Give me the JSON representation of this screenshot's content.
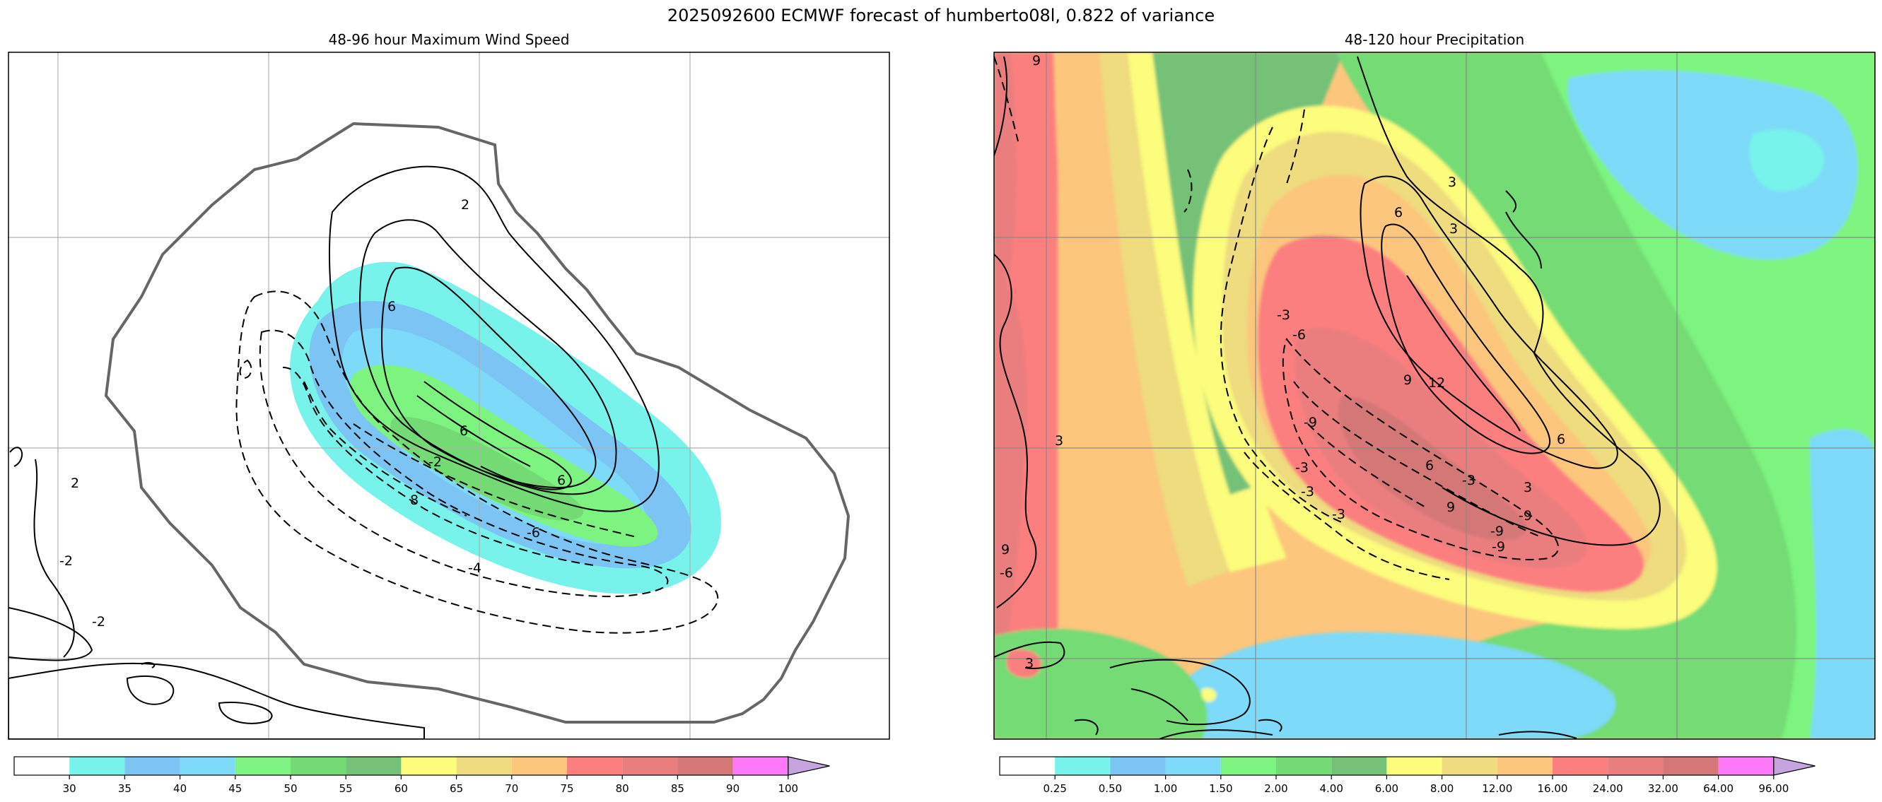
{
  "title": "2025092600 ECMWF forecast of humberto08l, 0.822 of variance",
  "chart_data": [
    {
      "type": "heatmap",
      "title": "48-96 hour Maximum Wind Speed",
      "colorbar": {
        "levels": [
          "30",
          "35",
          "40",
          "45",
          "50",
          "55",
          "60",
          "65",
          "70",
          "75",
          "80",
          "85",
          "90",
          "100"
        ],
        "colors": [
          "#78f3ec",
          "#7bc4f3",
          "#7ddaf8",
          "#7cf47f",
          "#74db74",
          "#75c178",
          "#fcfc7d",
          "#eedc7f",
          "#fcc67d",
          "#fc7f7f",
          "#ea7e7f",
          "#d47777",
          "#fd78f8",
          "#c6a5df"
        ],
        "extend": "max"
      },
      "contour_labels": [
        "2",
        "2",
        "-2",
        "6",
        "6",
        "6",
        "8",
        "-4",
        "-6",
        "-2",
        "-2"
      ]
    },
    {
      "type": "heatmap",
      "title": "48-120 hour Precipitation",
      "colorbar": {
        "levels": [
          "0.25",
          "0.50",
          "1.00",
          "1.50",
          "2.00",
          "4.00",
          "6.00",
          "8.00",
          "12.00",
          "16.00",
          "24.00",
          "32.00",
          "64.00",
          "96.00"
        ],
        "colors": [
          "#78f3ec",
          "#7bc4f3",
          "#7ddaf8",
          "#7cf47f",
          "#74db74",
          "#75c178",
          "#fcfc7d",
          "#eedc7f",
          "#fcc67d",
          "#fc7f7f",
          "#ea7e7f",
          "#d47777",
          "#fd78f8",
          "#c6a5df"
        ],
        "extend": "max"
      },
      "contour_labels": [
        "9",
        "6",
        "3",
        "12",
        "9",
        "6",
        "3",
        "3",
        "6",
        "9",
        "9",
        "-9",
        "-9",
        "-3",
        "-6",
        "-3",
        "-9",
        "-3",
        "3",
        "-6",
        "-3",
        "-9",
        "3",
        "-3"
      ]
    }
  ]
}
